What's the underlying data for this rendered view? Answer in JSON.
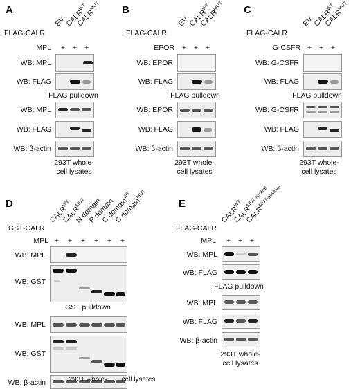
{
  "panels": {
    "A": {
      "letter": "A",
      "construct": "FLAG-CALR",
      "lanes": [
        {
          "base": "EV",
          "sup": ""
        },
        {
          "base": "CALR",
          "sup": "WT"
        },
        {
          "base": "CALR",
          "sup": "MUT"
        }
      ],
      "receptor": "MPL",
      "plus": "+",
      "blots": [
        "WB: MPL",
        "WB: FLAG",
        "WB: MPL",
        "WB: FLAG",
        "WB: β-actin"
      ],
      "pulldown": "FLAG pulldown",
      "lysate": [
        "293T whole-",
        "cell lysates"
      ]
    },
    "B": {
      "letter": "B",
      "construct": "FLAG-CALR",
      "lanes": [
        {
          "base": "EV",
          "sup": ""
        },
        {
          "base": "CALR",
          "sup": "WT"
        },
        {
          "base": "CALR",
          "sup": "MUT"
        }
      ],
      "receptor": "EPOR",
      "plus": "+",
      "blots": [
        "WB: EPOR",
        "WB: FLAG",
        "WB: EPOR",
        "WB: FLAG",
        "WB: β-actin"
      ],
      "pulldown": "FLAG pulldown",
      "lysate": [
        "293T whole-",
        "cell lysates"
      ]
    },
    "C": {
      "letter": "C",
      "construct": "FLAG-CALR",
      "lanes": [
        {
          "base": "EV",
          "sup": ""
        },
        {
          "base": "CALR",
          "sup": "WT"
        },
        {
          "base": "CALR",
          "sup": "MUT"
        }
      ],
      "receptor": "G-CSFR",
      "plus": "+",
      "blots": [
        "WB: G-CSFR",
        "WB: FLAG",
        "WB: G-CSFR",
        "WB: FLAG",
        "WB: β-actin"
      ],
      "pulldown": "FLAG pulldown",
      "lysate": [
        "293T whole-",
        "cell lysates"
      ]
    },
    "D": {
      "letter": "D",
      "construct": "GST-CALR",
      "lanes": [
        {
          "base": "CALR",
          "sup": "WT"
        },
        {
          "base": "CALR",
          "sup": "MUT"
        },
        {
          "base": "N domain",
          "sup": ""
        },
        {
          "base": "P domain",
          "sup": ""
        },
        {
          "base": "C domain",
          "sup": "WT"
        },
        {
          "base": "C domain",
          "sup": "MUT"
        }
      ],
      "receptor": "MPL",
      "plus": "+",
      "blots": [
        "WB: MPL",
        "WB: GST",
        "WB: MPL",
        "WB: GST",
        "WB: β-actin"
      ],
      "pulldown": "GST pulldown",
      "lysate": [
        "293T whole-",
        "cell lysates"
      ]
    },
    "E": {
      "letter": "E",
      "construct": "FLAG-CALR",
      "lanes": [
        {
          "base": "CALR",
          "sup": "WT"
        },
        {
          "base": "CALR",
          "sup": "MUT-neutral"
        },
        {
          "base": "CALR",
          "sup": "MUT-positive"
        }
      ],
      "receptor": "MPL",
      "plus": "+",
      "blots": [
        "WB: MPL",
        "WB: FLAG",
        "WB: MPL",
        "WB: FLAG",
        "WB: β-actin"
      ],
      "pulldown": "FLAG pulldown",
      "lysate": [
        "293T whole-",
        "cell lysates"
      ]
    }
  }
}
